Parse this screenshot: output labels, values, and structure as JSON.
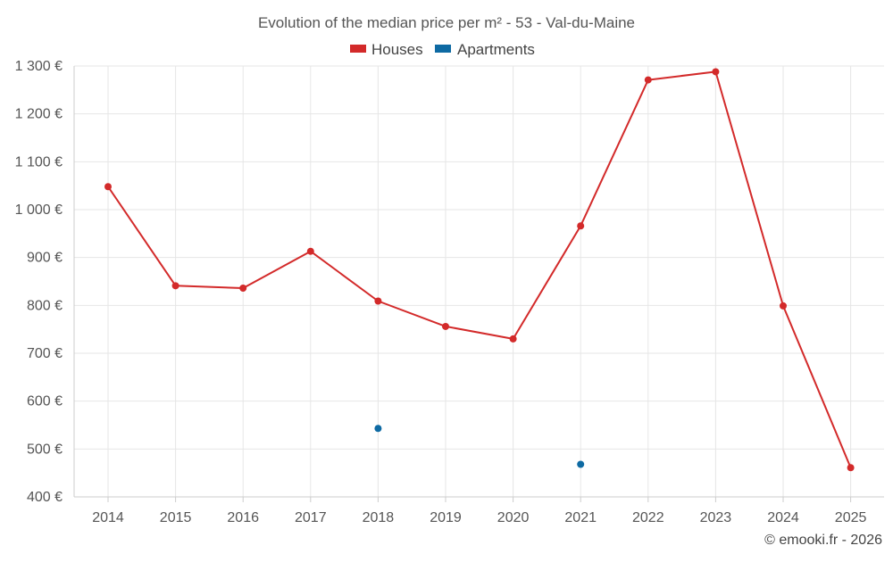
{
  "chart_data": {
    "type": "line",
    "title": "Evolution of the median price per m² - 53 - Val-du-Maine",
    "categories": [
      "2014",
      "2015",
      "2016",
      "2017",
      "2018",
      "2019",
      "2020",
      "2021",
      "2022",
      "2023",
      "2024",
      "2025"
    ],
    "ylim": [
      400,
      1300
    ],
    "yticks": [
      400,
      500,
      600,
      700,
      800,
      900,
      1000,
      1100,
      1200,
      1300
    ],
    "ytick_labels": [
      "400 €",
      "500 €",
      "600 €",
      "700 €",
      "800 €",
      "900 €",
      "1 000 €",
      "1 100 €",
      "1 200 €",
      "1 300 €"
    ],
    "grid": true,
    "legend_position": "top-center",
    "series": [
      {
        "name": "Houses",
        "color": "#d32a2a",
        "style": "line-markers",
        "values": [
          1048,
          841,
          836,
          913,
          809,
          756,
          730,
          966,
          1271,
          1288,
          799,
          461
        ]
      },
      {
        "name": "Apartments",
        "color": "#0e6aa3",
        "style": "markers",
        "values": [
          null,
          null,
          null,
          null,
          543,
          null,
          null,
          468,
          null,
          null,
          null,
          null
        ]
      }
    ]
  },
  "credit": "© emooki.fr - 2026"
}
